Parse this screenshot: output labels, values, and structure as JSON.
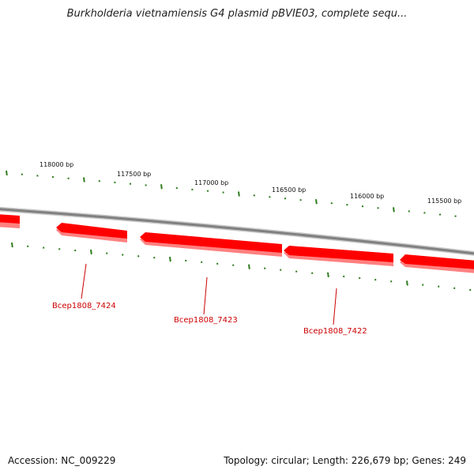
{
  "title": "Burkholderia vietnamiensis G4 plasmid pBVIE03, complete sequ...",
  "footer": {
    "accession": "Accession: NC_009229",
    "summary": "Topology: circular; Length: 226,679 bp; Genes: 249"
  },
  "colors": {
    "backbone": "#8a8a8a",
    "gene_fill": "#ff0000",
    "gene_shadow": "#ff6666",
    "tick": "#2e7d1e",
    "gene_label": "#cc0000"
  },
  "ticks": [
    {
      "label": "118000 bp",
      "position_bp": 118000
    },
    {
      "label": "117500 bp",
      "position_bp": 117500
    },
    {
      "label": "117000 bp",
      "position_bp": 117000
    },
    {
      "label": "116500 bp",
      "position_bp": 116500
    },
    {
      "label": "116000 bp",
      "position_bp": 116000
    },
    {
      "label": "115500 bp",
      "position_bp": 115500
    }
  ],
  "genes": [
    {
      "name": "Bcep1808_7424"
    },
    {
      "name": "Bcep1808_7423"
    },
    {
      "name": "Bcep1808_7422"
    }
  ]
}
